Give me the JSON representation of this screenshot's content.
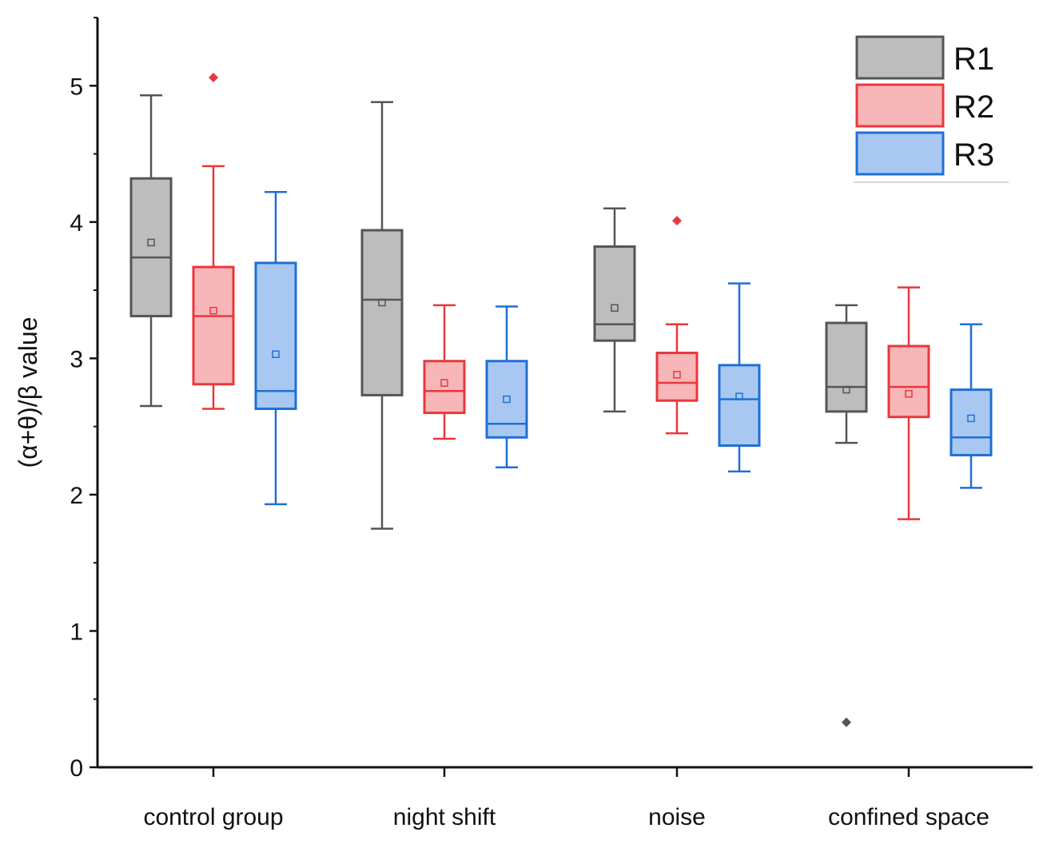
{
  "chart_data": {
    "type": "box",
    "title": "",
    "xlabel": "",
    "ylabel": "(α+θ)/β value",
    "ylim": [
      0,
      5.5
    ],
    "yticks": [
      "0",
      "1",
      "2",
      "3",
      "4",
      "5"
    ],
    "grid": false,
    "legend_position": "top-right",
    "categories": [
      "control group",
      "night shift",
      "noise",
      "confined space"
    ],
    "series": [
      {
        "name": "R1",
        "color": "#555555",
        "fill": "#bdbdbd",
        "boxes": [
          {
            "whisker_low": 2.65,
            "q1": 3.31,
            "median": 3.74,
            "q3": 4.32,
            "whisker_high": 4.93,
            "mean": 3.85,
            "outliers": []
          },
          {
            "whisker_low": 1.75,
            "q1": 2.73,
            "median": 3.43,
            "q3": 3.94,
            "whisker_high": 4.88,
            "mean": 3.41,
            "outliers": []
          },
          {
            "whisker_low": 2.61,
            "q1": 3.13,
            "median": 3.25,
            "q3": 3.82,
            "whisker_high": 4.1,
            "mean": 3.37,
            "outliers": []
          },
          {
            "whisker_low": 2.38,
            "q1": 2.61,
            "median": 2.79,
            "q3": 3.26,
            "whisker_high": 3.39,
            "mean": 2.77,
            "outliers": [
              0.33
            ]
          }
        ]
      },
      {
        "name": "R2",
        "color": "#e8383d",
        "fill": "#f7b6b8",
        "boxes": [
          {
            "whisker_low": 2.63,
            "q1": 2.81,
            "median": 3.31,
            "q3": 3.67,
            "whisker_high": 4.41,
            "mean": 3.35,
            "outliers": [
              5.06
            ]
          },
          {
            "whisker_low": 2.41,
            "q1": 2.6,
            "median": 2.76,
            "q3": 2.98,
            "whisker_high": 3.39,
            "mean": 2.82,
            "outliers": []
          },
          {
            "whisker_low": 2.45,
            "q1": 2.69,
            "median": 2.82,
            "q3": 3.04,
            "whisker_high": 3.25,
            "mean": 2.88,
            "outliers": [
              4.01
            ]
          },
          {
            "whisker_low": 1.82,
            "q1": 2.57,
            "median": 2.79,
            "q3": 3.09,
            "whisker_high": 3.52,
            "mean": 2.74,
            "outliers": []
          }
        ]
      },
      {
        "name": "R3",
        "color": "#1f6fd6",
        "fill": "#a9c8f1",
        "boxes": [
          {
            "whisker_low": 1.93,
            "q1": 2.63,
            "median": 2.76,
            "q3": 3.7,
            "whisker_high": 4.22,
            "mean": 3.03,
            "outliers": []
          },
          {
            "whisker_low": 2.2,
            "q1": 2.42,
            "median": 2.52,
            "q3": 2.98,
            "whisker_high": 3.38,
            "mean": 2.7,
            "outliers": []
          },
          {
            "whisker_low": 2.17,
            "q1": 2.36,
            "median": 2.7,
            "q3": 2.95,
            "whisker_high": 3.55,
            "mean": 2.72,
            "outliers": []
          },
          {
            "whisker_low": 2.05,
            "q1": 2.29,
            "median": 2.42,
            "q3": 2.77,
            "whisker_high": 3.25,
            "mean": 2.56,
            "outliers": []
          }
        ]
      }
    ]
  }
}
